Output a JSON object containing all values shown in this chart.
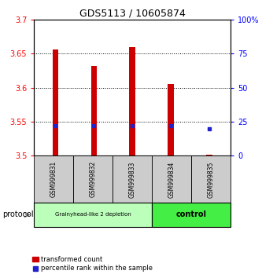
{
  "title": "GDS5113 / 10605874",
  "samples": [
    "GSM999831",
    "GSM999832",
    "GSM999833",
    "GSM999834",
    "GSM999835"
  ],
  "bar_tops": [
    3.656,
    3.632,
    3.659,
    3.605,
    3.501
  ],
  "bar_bottom": 3.5,
  "blue_pct": [
    22,
    22,
    22,
    22,
    20
  ],
  "ylim_left": [
    3.5,
    3.7
  ],
  "ylim_right": [
    0,
    100
  ],
  "yticks_left": [
    3.5,
    3.55,
    3.6,
    3.65,
    3.7
  ],
  "yticks_right": [
    0,
    25,
    50,
    75,
    100
  ],
  "bar_color": "#cc0000",
  "blue_color": "#2222cc",
  "group1_label": "Grainyhead-like 2 depletion",
  "group2_label": "control",
  "group1_color": "#bbffbb",
  "group2_color": "#44ee44",
  "group1_count": 3,
  "group2_count": 2,
  "protocol_label": "protocol",
  "bar_width": 0.15,
  "bg_color": "#ffffff",
  "box_bg": "#cccccc",
  "legend1": "transformed count",
  "legend2": "percentile rank within the sample"
}
